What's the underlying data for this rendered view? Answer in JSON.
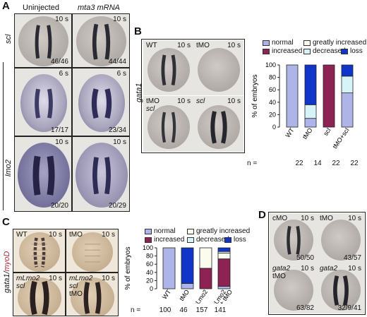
{
  "panels": {
    "A": {
      "letter": "A",
      "col_titles": [
        "Uninjected",
        "mta3 mRNA"
      ],
      "row_labels": [
        "scl",
        "lmo2"
      ],
      "tiles": [
        {
          "time": "10 s",
          "count": "46/46"
        },
        {
          "time": "10 s",
          "count": "44/44"
        },
        {
          "time": "6 s",
          "count": "17/17"
        },
        {
          "time": "6 s",
          "count": "23/34"
        },
        {
          "time": "10 s",
          "count": "20/20"
        },
        {
          "time": "10 s",
          "count": "20/29"
        }
      ]
    },
    "B": {
      "letter": "B",
      "row_label": "gata1",
      "tiles": [
        {
          "label": "WT",
          "label2": "",
          "time": "10 s"
        },
        {
          "label": "tMO",
          "label2": "",
          "time": "10 s"
        },
        {
          "label": "tMO",
          "label2": "scl",
          "time": "10 s"
        },
        {
          "label": "scl",
          "label2": "",
          "time": "10 s"
        }
      ]
    },
    "C": {
      "letter": "C",
      "row_label_a": "gata1/",
      "row_label_b": "myoD",
      "tiles": [
        {
          "label": "WT",
          "label2": "",
          "label3": "",
          "time": "10 s"
        },
        {
          "label": "tMO",
          "label2": "",
          "label3": "",
          "time": "10 s"
        },
        {
          "label": "mLmo2",
          "label2": "scl",
          "label3": "",
          "time": "10 s"
        },
        {
          "label": "mLmo2",
          "label2": "scl",
          "label3": "tMO",
          "time": "10 s"
        }
      ]
    },
    "D": {
      "letter": "D",
      "tiles": [
        {
          "label": "cMO",
          "label2": "",
          "time": "10 s",
          "count": "50/50"
        },
        {
          "label": "tMO",
          "label2": "",
          "time": "10 s",
          "count": "43/57"
        },
        {
          "label": "gata2",
          "label2": "tMO",
          "time": "10 s",
          "count": "63/82"
        },
        {
          "label": "gata2",
          "label2": "",
          "time": "10 s",
          "count": "32/9/41"
        }
      ]
    }
  },
  "legend": {
    "normal": "normal",
    "increased": "increased",
    "greatly_increased": "greatly increased",
    "decreased": "decreased",
    "loss": "loss"
  },
  "colors": {
    "normal": "#aeb4e8",
    "increased": "#8c2352",
    "greatly_increased": "#fbfbee",
    "decreased": "#d6f3f7",
    "loss": "#1035c8"
  },
  "chart_data": [
    {
      "type": "bar",
      "panel": "B",
      "stacked": true,
      "ylabel": "% of embryos",
      "ylim": [
        0,
        100
      ],
      "yticks": [
        0,
        20,
        40,
        60,
        80,
        100
      ],
      "categories": [
        "WT",
        "tMO",
        "scl",
        "tMO+scl"
      ],
      "n_label": "n =",
      "n": [
        "22",
        "14",
        "22",
        "22"
      ],
      "series": [
        {
          "name": "normal",
          "values": [
            100,
            14,
            0,
            55
          ]
        },
        {
          "name": "increased",
          "values": [
            0,
            0,
            100,
            0
          ]
        },
        {
          "name": "greatly increased",
          "values": [
            0,
            0,
            0,
            0
          ]
        },
        {
          "name": "decreased",
          "values": [
            0,
            22,
            0,
            27
          ]
        },
        {
          "name": "loss",
          "values": [
            0,
            64,
            0,
            18
          ]
        }
      ]
    },
    {
      "type": "bar",
      "panel": "C",
      "stacked": true,
      "ylabel": "% of embryos",
      "ylim": [
        0,
        100
      ],
      "yticks": [
        0,
        20,
        40,
        60,
        80,
        100
      ],
      "categories": [
        "WT",
        "tMO",
        "scl+mLmo2",
        "scl+mLmo2 + tMO"
      ],
      "n_label": "n =",
      "n": [
        "100",
        "46",
        "157",
        "141"
      ],
      "series": [
        {
          "name": "normal",
          "values": [
            100,
            13,
            0,
            6
          ]
        },
        {
          "name": "increased",
          "values": [
            0,
            0,
            50,
            67
          ]
        },
        {
          "name": "greatly increased",
          "values": [
            0,
            0,
            50,
            14
          ]
        },
        {
          "name": "decreased",
          "values": [
            0,
            0,
            0,
            4
          ]
        },
        {
          "name": "loss",
          "values": [
            0,
            87,
            0,
            9
          ]
        }
      ]
    }
  ]
}
